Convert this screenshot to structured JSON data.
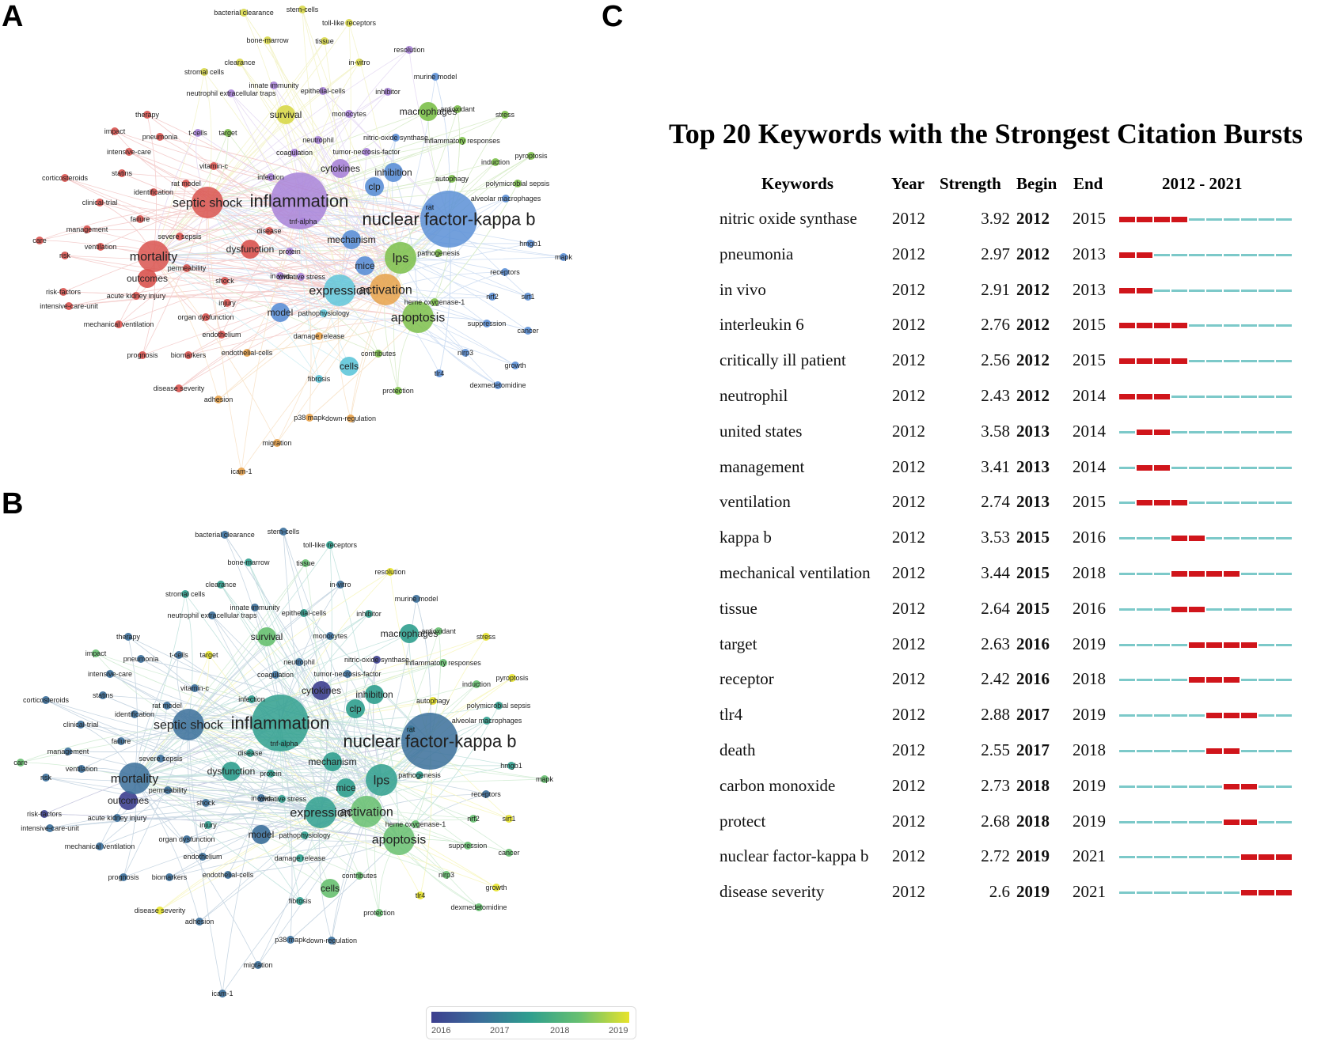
{
  "panels": {
    "a": "A",
    "b": "B",
    "c": "C"
  },
  "network": {
    "cluster_colors": {
      "red": "#d9534f",
      "purple": "#a883d8",
      "blue": "#5b8fd6",
      "green": "#7cc04a",
      "yellow": "#d8d84a",
      "cyan": "#5fc6d9",
      "orange": "#e8a24a"
    },
    "overlay_colors": [
      "#3d3f8f",
      "#3a6e9a",
      "#2f9f8e",
      "#67c070",
      "#e7e32a"
    ],
    "keywords": [
      {
        "t": "inflammation",
        "c": "purple",
        "s": 3,
        "o": 2
      },
      {
        "t": "nuclear factor-kappa b",
        "c": "blue",
        "s": 3,
        "o": 1
      },
      {
        "t": "septic shock",
        "c": "red",
        "s": 2,
        "o": 1
      },
      {
        "t": "expression",
        "c": "cyan",
        "s": 2,
        "o": 2
      },
      {
        "t": "activation",
        "c": "orange",
        "s": 2,
        "o": 3
      },
      {
        "t": "apoptosis",
        "c": "green",
        "s": 2,
        "o": 3
      },
      {
        "t": "lps",
        "c": "green",
        "s": 2,
        "o": 2
      },
      {
        "t": "mortality",
        "c": "red",
        "s": 2,
        "o": 1
      },
      {
        "t": "macrophages",
        "c": "green",
        "s": 1,
        "o": 2
      },
      {
        "t": "mice",
        "c": "blue",
        "s": 1,
        "o": 2
      },
      {
        "t": "cells",
        "c": "cyan",
        "s": 1,
        "o": 3
      },
      {
        "t": "cytokines",
        "c": "purple",
        "s": 1,
        "o": 0
      },
      {
        "t": "model",
        "c": "blue",
        "s": 1,
        "o": 1
      },
      {
        "t": "inhibition",
        "c": "blue",
        "s": 1,
        "o": 2
      },
      {
        "t": "clp",
        "c": "blue",
        "s": 1,
        "o": 2
      },
      {
        "t": "survival",
        "c": "yellow",
        "s": 1,
        "o": 3
      },
      {
        "t": "dysfunction",
        "c": "red",
        "s": 1,
        "o": 2
      },
      {
        "t": "outcomes",
        "c": "red",
        "s": 1,
        "o": 0
      },
      {
        "t": "mechanism",
        "c": "blue",
        "s": 1,
        "o": 2
      },
      {
        "t": "pathogenesis",
        "c": "green",
        "s": 0,
        "o": 2
      },
      {
        "t": "receptors",
        "c": "blue",
        "s": 0,
        "o": 1
      },
      {
        "t": "severe sepsis",
        "c": "red",
        "s": 0,
        "o": 1
      },
      {
        "t": "shock",
        "c": "red",
        "s": 0,
        "o": 1
      },
      {
        "t": "injury",
        "c": "red",
        "s": 0,
        "o": 2
      },
      {
        "t": "autophagy",
        "c": "green",
        "s": 0,
        "o": 4
      },
      {
        "t": "tnf-alpha",
        "c": "purple",
        "s": 0,
        "o": 2
      },
      {
        "t": "infection",
        "c": "purple",
        "s": 0,
        "o": 2
      },
      {
        "t": "rat model",
        "c": "red",
        "s": 0,
        "o": 1
      },
      {
        "t": "neutrophil",
        "c": "purple",
        "s": 0,
        "o": 1
      },
      {
        "t": "coagulation",
        "c": "purple",
        "s": 0,
        "o": 1
      },
      {
        "t": "nitric-oxide synthase",
        "c": "blue",
        "s": 0,
        "o": 0
      },
      {
        "t": "tumor-necrosis-factor",
        "c": "purple",
        "s": 0,
        "o": 1
      },
      {
        "t": "monocytes",
        "c": "purple",
        "s": 0,
        "o": 1
      },
      {
        "t": "epithelial-cells",
        "c": "purple",
        "s": 0,
        "o": 2
      },
      {
        "t": "in-vitro",
        "c": "yellow",
        "s": 0,
        "o": 1
      },
      {
        "t": "tissue",
        "c": "yellow",
        "s": 0,
        "o": 3
      },
      {
        "t": "bone-marrow",
        "c": "yellow",
        "s": 0,
        "o": 2
      },
      {
        "t": "bacterial clearance",
        "c": "yellow",
        "s": 0,
        "o": 1
      },
      {
        "t": "stem-cells",
        "c": "yellow",
        "s": 0,
        "o": 1
      },
      {
        "t": "toll-like receptors",
        "c": "yellow",
        "s": 0,
        "o": 2
      },
      {
        "t": "resolution",
        "c": "purple",
        "s": 0,
        "o": 4
      },
      {
        "t": "murine model",
        "c": "blue",
        "s": 0,
        "o": 1
      },
      {
        "t": "inhibitor",
        "c": "purple",
        "s": 0,
        "o": 2
      },
      {
        "t": "stromal cells",
        "c": "yellow",
        "s": 0,
        "o": 2
      },
      {
        "t": "clearance",
        "c": "yellow",
        "s": 0,
        "o": 2
      },
      {
        "t": "innate immunity",
        "c": "purple",
        "s": 0,
        "o": 1
      },
      {
        "t": "neutrophil extracellular traps",
        "c": "purple",
        "s": 0,
        "o": 1
      },
      {
        "t": "therapy",
        "c": "red",
        "s": 0,
        "o": 1
      },
      {
        "t": "impact",
        "c": "red",
        "s": 0,
        "o": 3
      },
      {
        "t": "pneumonia",
        "c": "red",
        "s": 0,
        "o": 1
      },
      {
        "t": "t-cells",
        "c": "purple",
        "s": 0,
        "o": 1
      },
      {
        "t": "target",
        "c": "green",
        "s": 0,
        "o": 4
      },
      {
        "t": "intensive-care",
        "c": "red",
        "s": 0,
        "o": 1
      },
      {
        "t": "statins",
        "c": "red",
        "s": 0,
        "o": 1
      },
      {
        "t": "corticosteroids",
        "c": "red",
        "s": 0,
        "o": 1
      },
      {
        "t": "clinical-trial",
        "c": "red",
        "s": 0,
        "o": 1
      },
      {
        "t": "failure",
        "c": "red",
        "s": 0,
        "o": 1
      },
      {
        "t": "management",
        "c": "red",
        "s": 0,
        "o": 1
      },
      {
        "t": "care",
        "c": "red",
        "s": 0,
        "o": 3
      },
      {
        "t": "ventilation",
        "c": "red",
        "s": 0,
        "o": 1
      },
      {
        "t": "risk",
        "c": "red",
        "s": 0,
        "o": 1
      },
      {
        "t": "risk-factors",
        "c": "red",
        "s": 0,
        "o": 0
      },
      {
        "t": "intensive-care-unit",
        "c": "red",
        "s": 0,
        "o": 1
      },
      {
        "t": "acute kidney injury",
        "c": "red",
        "s": 0,
        "o": 1
      },
      {
        "t": "mechanical ventilation",
        "c": "red",
        "s": 0,
        "o": 1
      },
      {
        "t": "organ dysfunction",
        "c": "red",
        "s": 0,
        "o": 1
      },
      {
        "t": "endothelium",
        "c": "red",
        "s": 0,
        "o": 1
      },
      {
        "t": "prognosis",
        "c": "red",
        "s": 0,
        "o": 1
      },
      {
        "t": "biomarkers",
        "c": "red",
        "s": 0,
        "o": 1
      },
      {
        "t": "endothelial-cells",
        "c": "orange",
        "s": 0,
        "o": 1
      },
      {
        "t": "disease severity",
        "c": "red",
        "s": 0,
        "o": 4
      },
      {
        "t": "adhesion",
        "c": "orange",
        "s": 0,
        "o": 1
      },
      {
        "t": "pathophysiology",
        "c": "cyan",
        "s": 0,
        "o": 2
      },
      {
        "t": "damage release",
        "c": "orange",
        "s": 0,
        "o": 2
      },
      {
        "t": "fibrosis",
        "c": "cyan",
        "s": 0,
        "o": 2
      },
      {
        "t": "contributes",
        "c": "green",
        "s": 0,
        "o": 3
      },
      {
        "t": "protection",
        "c": "green",
        "s": 0,
        "o": 3
      },
      {
        "t": "p38 mapk",
        "c": "orange",
        "s": 0,
        "o": 1
      },
      {
        "t": "down-regulation",
        "c": "orange",
        "s": 0,
        "o": 1
      },
      {
        "t": "migration",
        "c": "orange",
        "s": 0,
        "o": 1
      },
      {
        "t": "icam-1",
        "c": "orange",
        "s": 0,
        "o": 1
      },
      {
        "t": "tlr4",
        "c": "blue",
        "s": 0,
        "o": 4
      },
      {
        "t": "nlrp3",
        "c": "blue",
        "s": 0,
        "o": 3
      },
      {
        "t": "growth",
        "c": "blue",
        "s": 0,
        "o": 4
      },
      {
        "t": "dexmedetomidine",
        "c": "blue",
        "s": 0,
        "o": 3
      },
      {
        "t": "cancer",
        "c": "blue",
        "s": 0,
        "o": 3
      },
      {
        "t": "suppression",
        "c": "blue",
        "s": 0,
        "o": 3
      },
      {
        "t": "nrf2",
        "c": "blue",
        "s": 0,
        "o": 3
      },
      {
        "t": "sirt1",
        "c": "blue",
        "s": 0,
        "o": 4
      },
      {
        "t": "heme oxygenase-1",
        "c": "green",
        "s": 0,
        "o": 3
      },
      {
        "t": "mapk",
        "c": "blue",
        "s": 0,
        "o": 3
      },
      {
        "t": "hmgb1",
        "c": "blue",
        "s": 0,
        "o": 2
      },
      {
        "t": "alveolar macrophages",
        "c": "blue",
        "s": 0,
        "o": 2
      },
      {
        "t": "polymicrobial sepsis",
        "c": "green",
        "s": 0,
        "o": 2
      },
      {
        "t": "pyroptosis",
        "c": "green",
        "s": 0,
        "o": 4
      },
      {
        "t": "induction",
        "c": "green",
        "s": 0,
        "o": 3
      },
      {
        "t": "stress",
        "c": "green",
        "s": 0,
        "o": 4
      },
      {
        "t": "antioxidant",
        "c": "green",
        "s": 0,
        "o": 3
      },
      {
        "t": "inflammatory responses",
        "c": "green",
        "s": 0,
        "o": 3
      },
      {
        "t": "in vivo",
        "c": "purple",
        "s": 0,
        "o": 1
      },
      {
        "t": "oxidative stress",
        "c": "purple",
        "s": 0,
        "o": 2
      },
      {
        "t": "protein",
        "c": "purple",
        "s": 0,
        "o": 2
      },
      {
        "t": "permeability",
        "c": "red",
        "s": 0,
        "o": 1
      },
      {
        "t": "disease",
        "c": "red",
        "s": 0,
        "o": 2
      },
      {
        "t": "identification",
        "c": "red",
        "s": 0,
        "o": 1
      },
      {
        "t": "vitamin-c",
        "c": "red",
        "s": 0,
        "o": 1
      },
      {
        "t": "rat",
        "c": "blue",
        "s": 0,
        "o": 2
      }
    ],
    "colorbar_ticks": [
      "2016",
      "2017",
      "2018",
      "2019"
    ]
  },
  "chart_data": {
    "type": "table",
    "title": "Top 20 Keywords with the Strongest Citation Bursts",
    "columns": [
      "Keywords",
      "Year",
      "Strength",
      "Begin",
      "End",
      "2012 - 2021"
    ],
    "range_start": 2012,
    "range_end": 2021,
    "burst_color": "#d0151b",
    "base_color": "#7cc9c9",
    "rows": [
      {
        "keyword": "nitric oxide synthase",
        "year": "2012",
        "strength": "3.92",
        "begin": "2012",
        "end": "2015"
      },
      {
        "keyword": "pneumonia",
        "year": "2012",
        "strength": "2.97",
        "begin": "2012",
        "end": "2013"
      },
      {
        "keyword": "in vivo",
        "year": "2012",
        "strength": "2.91",
        "begin": "2012",
        "end": "2013"
      },
      {
        "keyword": "interleukin 6",
        "year": "2012",
        "strength": "2.76",
        "begin": "2012",
        "end": "2015"
      },
      {
        "keyword": "critically ill patient",
        "year": "2012",
        "strength": "2.56",
        "begin": "2012",
        "end": "2015"
      },
      {
        "keyword": "neutrophil",
        "year": "2012",
        "strength": "2.43",
        "begin": "2012",
        "end": "2014"
      },
      {
        "keyword": "united states",
        "year": "2012",
        "strength": "3.58",
        "begin": "2013",
        "end": "2014"
      },
      {
        "keyword": "management",
        "year": "2012",
        "strength": "3.41",
        "begin": "2013",
        "end": "2014"
      },
      {
        "keyword": "ventilation",
        "year": "2012",
        "strength": "2.74",
        "begin": "2013",
        "end": "2015"
      },
      {
        "keyword": "kappa b",
        "year": "2012",
        "strength": "3.53",
        "begin": "2015",
        "end": "2016"
      },
      {
        "keyword": "mechanical ventilation",
        "year": "2012",
        "strength": "3.44",
        "begin": "2015",
        "end": "2018"
      },
      {
        "keyword": "tissue",
        "year": "2012",
        "strength": "2.64",
        "begin": "2015",
        "end": "2016"
      },
      {
        "keyword": "target",
        "year": "2012",
        "strength": "2.63",
        "begin": "2016",
        "end": "2019"
      },
      {
        "keyword": "receptor",
        "year": "2012",
        "strength": "2.42",
        "begin": "2016",
        "end": "2018"
      },
      {
        "keyword": "tlr4",
        "year": "2012",
        "strength": "2.88",
        "begin": "2017",
        "end": "2019"
      },
      {
        "keyword": "death",
        "year": "2012",
        "strength": "2.55",
        "begin": "2017",
        "end": "2018"
      },
      {
        "keyword": "carbon monoxide",
        "year": "2012",
        "strength": "2.73",
        "begin": "2018",
        "end": "2019"
      },
      {
        "keyword": "protect",
        "year": "2012",
        "strength": "2.68",
        "begin": "2018",
        "end": "2019"
      },
      {
        "keyword": "nuclear factor-kappa b",
        "year": "2012",
        "strength": "2.72",
        "begin": "2019",
        "end": "2021"
      },
      {
        "keyword": "disease severity",
        "year": "2012",
        "strength": "2.6",
        "begin": "2019",
        "end": "2021"
      }
    ]
  }
}
